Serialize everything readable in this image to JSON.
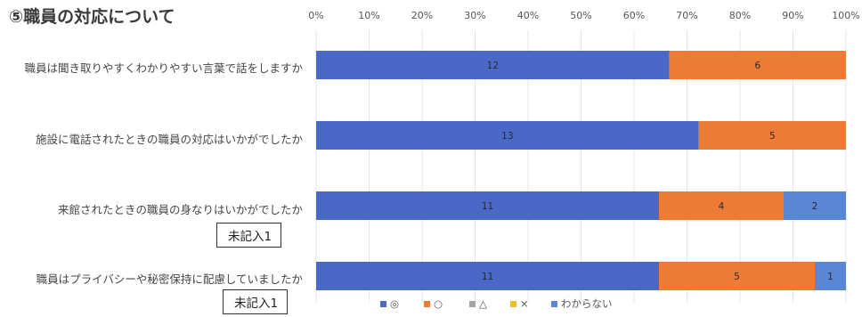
{
  "chart_data": {
    "type": "bar",
    "orientation": "horizontal",
    "stacked": "percent",
    "title": "⑤職員の対応について",
    "categories": [
      "職員は聞き取りやすくわかりやすい言葉で話をしますか",
      "施設に電話されたときの職員の対応はいかがでしたか",
      "来館されたときの職員の身なりはいかがでしたか",
      "職員はプライバシーや秘密保持に配慮していましたか"
    ],
    "series": [
      {
        "name": "◎",
        "color": "#4a68c6",
        "values": [
          12,
          13,
          11,
          11
        ]
      },
      {
        "name": "○",
        "color": "#ec7b34",
        "values": [
          6,
          5,
          4,
          5
        ]
      },
      {
        "name": "△",
        "color": "#a5a5a5",
        "values": [
          0,
          0,
          0,
          0
        ]
      },
      {
        "name": "×",
        "color": "#f2bd2c",
        "values": [
          0,
          0,
          0,
          0
        ]
      },
      {
        "name": "わからない",
        "color": "#5a86d6",
        "values": [
          0,
          0,
          2,
          1
        ]
      }
    ],
    "x_ticks": [
      "0%",
      "10%",
      "20%",
      "30%",
      "40%",
      "50%",
      "60%",
      "70%",
      "80%",
      "90%",
      "100%"
    ],
    "xlim": [
      0,
      100
    ],
    "legend_position": "bottom",
    "grid": true
  },
  "notes": [
    "未記入1",
    "未記入1"
  ]
}
